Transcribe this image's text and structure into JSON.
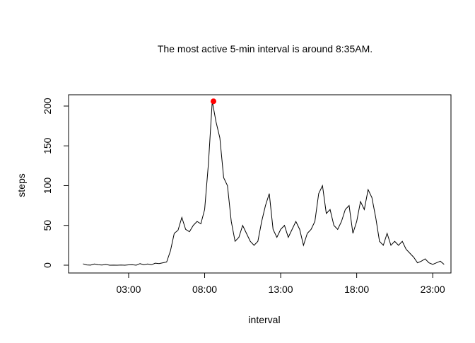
{
  "chart_data": {
    "type": "line",
    "title": "The most active 5-min interval is around 8:35AM.",
    "x_label": "interval",
    "y_label": "steps",
    "x": [
      0,
      0.25,
      0.5,
      0.75,
      1,
      1.25,
      1.5,
      1.75,
      2,
      2.25,
      2.5,
      2.75,
      3,
      3.25,
      3.5,
      3.75,
      4,
      4.25,
      4.5,
      4.75,
      5,
      5.25,
      5.5,
      5.75,
      6,
      6.25,
      6.5,
      6.75,
      7,
      7.25,
      7.5,
      7.75,
      8,
      8.25,
      8.5,
      8.75,
      9,
      9.25,
      9.5,
      9.75,
      10,
      10.25,
      10.5,
      10.75,
      11,
      11.25,
      11.5,
      11.75,
      12,
      12.25,
      12.5,
      12.75,
      13,
      13.25,
      13.5,
      13.75,
      14,
      14.25,
      14.5,
      14.75,
      15,
      15.25,
      15.5,
      15.75,
      16,
      16.25,
      16.5,
      16.75,
      17,
      17.25,
      17.5,
      17.75,
      18,
      18.25,
      18.5,
      18.75,
      19,
      19.25,
      19.5,
      19.75,
      20,
      20.25,
      20.5,
      20.75,
      21,
      21.25,
      21.5,
      21.75,
      22,
      22.25,
      22.5,
      22.75,
      23,
      23.25,
      23.5,
      23.75
    ],
    "values": [
      1.7,
      0.3,
      0.1,
      1.5,
      0.5,
      0.2,
      1,
      0,
      0.1,
      0,
      0.2,
      0,
      0.4,
      0.5,
      0,
      2,
      0.5,
      1.5,
      0.5,
      2.5,
      2,
      3,
      4,
      18,
      40,
      44,
      60,
      45,
      42,
      50,
      55,
      52,
      70,
      128,
      206,
      180,
      160,
      110,
      100,
      55,
      30,
      35,
      50,
      40,
      30,
      25,
      30,
      55,
      75,
      90,
      45,
      35,
      45,
      50,
      35,
      45,
      55,
      45,
      25,
      40,
      45,
      55,
      90,
      100,
      65,
      70,
      50,
      45,
      55,
      70,
      75,
      40,
      55,
      80,
      70,
      95,
      85,
      60,
      30,
      25,
      40,
      25,
      30,
      25,
      30,
      20,
      15,
      10,
      3,
      5,
      8,
      3,
      1,
      3,
      5,
      1
    ],
    "color": "#000000",
    "peak": {
      "x": 8.58,
      "value": 206,
      "color": "#ff0000"
    },
    "xlim": [
      -0.95,
      24.2
    ],
    "ylim": [
      -9.8,
      214.2
    ],
    "xticks": [
      {
        "value": 3,
        "label": "03:00"
      },
      {
        "value": 8,
        "label": "08:00"
      },
      {
        "value": 13,
        "label": "13:00"
      },
      {
        "value": 18,
        "label": "18:00"
      },
      {
        "value": 23,
        "label": "23:00"
      }
    ],
    "yticks": [
      0,
      50,
      100,
      150,
      200
    ]
  }
}
